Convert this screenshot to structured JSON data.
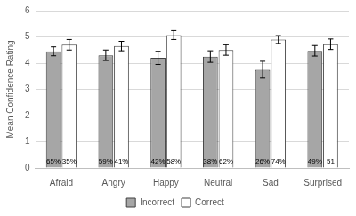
{
  "chart_data": {
    "type": "bar",
    "y_label": "Mean Confidence Rating",
    "categories": [
      "Afraid",
      "Angry",
      "Happy",
      "Neutral",
      "Sad",
      "Surprised"
    ],
    "series": [
      {
        "name": "Incorrect",
        "color": "#a6a6a6",
        "values": [
          4.45,
          4.3,
          4.2,
          4.25,
          3.75,
          4.47
        ],
        "errors": [
          0.17,
          0.2,
          0.25,
          0.22,
          0.32,
          0.2
        ],
        "bar_labels": [
          "65%",
          "59%",
          "42%",
          "38%",
          "26%",
          "49%"
        ]
      },
      {
        "name": "Correct",
        "color": "#ffffff",
        "values": [
          4.7,
          4.65,
          5.07,
          4.5,
          4.9,
          4.72
        ],
        "errors": [
          0.2,
          0.18,
          0.17,
          0.2,
          0.15,
          0.2
        ],
        "bar_labels": [
          "35%",
          "41%",
          "58%",
          "62%",
          "74%",
          "51"
        ]
      }
    ],
    "ylim": [
      0,
      6
    ],
    "yticks": [
      0,
      1,
      2,
      3,
      4,
      5,
      6
    ],
    "grid": true,
    "legend": "bottom"
  }
}
